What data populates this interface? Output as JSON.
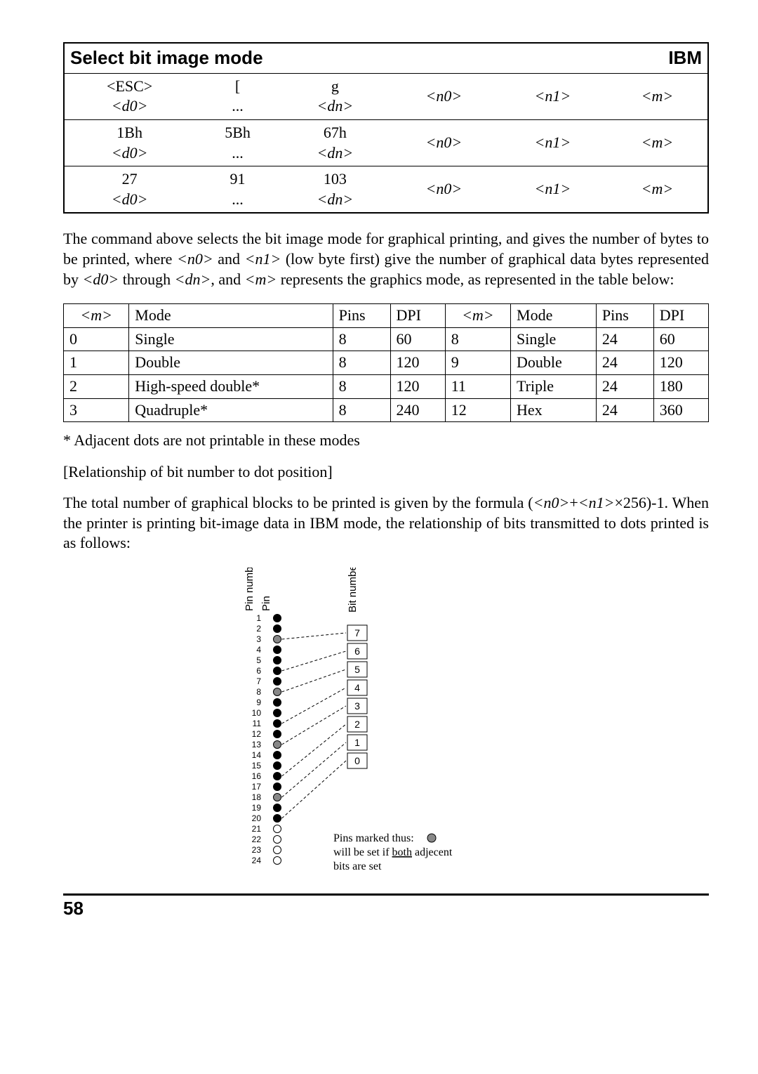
{
  "command_table": {
    "title": "Select bit image mode",
    "right_label": "IBM",
    "rows": [
      {
        "c0a": "<ESC>",
        "c0b": "<d0>",
        "c1a": "[",
        "c1b": "...",
        "c2a": "g",
        "c2b": "<dn>",
        "c3": "<n0>",
        "c4": "<n1>",
        "c5": "<m>"
      },
      {
        "c0a": "1Bh",
        "c0b": "<d0>",
        "c1a": "5Bh",
        "c1b": "...",
        "c2a": "67h",
        "c2b": "<dn>",
        "c3": "<n0>",
        "c4": "<n1>",
        "c5": "<m>"
      },
      {
        "c0a": "27",
        "c0b": "<d0>",
        "c1a": "91",
        "c1b": "...",
        "c2a": "103",
        "c2b": "<dn>",
        "c3": "<n0>",
        "c4": "<n1>",
        "c5": "<m>"
      }
    ]
  },
  "paragraph1": "The command above selects the bit image mode for graphical printing, and gives the number of bytes to be printed, where <n0> and <n1> (low byte first) give the number of graphical data bytes represented by <d0> through <dn>, and <m> represents the graphics mode, as represented in the table below:",
  "mode_table": {
    "headers": [
      "<m>",
      "Mode",
      "Pins",
      "DPI",
      "<m>",
      "Mode",
      "Pins",
      "DPI"
    ],
    "rows": [
      [
        "0",
        "Single",
        "8",
        "60",
        "8",
        "Single",
        "24",
        "60"
      ],
      [
        "1",
        "Double",
        "8",
        "120",
        "9",
        "Double",
        "24",
        "120"
      ],
      [
        "2",
        "High-speed double*",
        "8",
        "120",
        "11",
        "Triple",
        "24",
        "180"
      ],
      [
        "3",
        "Quadruple*",
        "8",
        "240",
        "12",
        "Hex",
        "24",
        "360"
      ]
    ]
  },
  "footnote": "* Adjacent dots are not printable in these modes",
  "subhead": "[Relationship of bit number to dot position]",
  "paragraph2": "The total number of graphical blocks to be printed is given by the formula (<n0>+<n1>×256)-1. When the printer is printing bit-image data in IBM mode, the relationship of bits transmitted to dots printed is as follows:",
  "diagram": {
    "pin_number_label": "Pin number",
    "pin_label": "Pin",
    "bit_number_label": "Bit number",
    "pins": [
      1,
      2,
      3,
      4,
      5,
      6,
      7,
      8,
      9,
      10,
      11,
      12,
      13,
      14,
      15,
      16,
      17,
      18,
      19,
      20,
      21,
      22,
      23,
      24
    ],
    "shaded_pins": [
      3,
      8,
      13,
      18
    ],
    "open_pins": [
      21,
      22,
      23,
      24
    ],
    "bit_boxes": [
      7,
      6,
      5,
      4,
      3,
      2,
      1,
      0
    ],
    "note_line1_pre": "Pins marked thus: ",
    "note_line2": "will be set if both adjecent",
    "note_line3": "bits are set"
  },
  "page_number": "58"
}
